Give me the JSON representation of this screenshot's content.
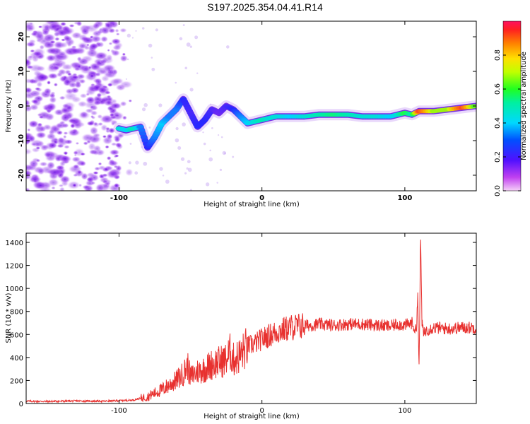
{
  "title": "S197.2025.354.04.41.R14",
  "colors": {
    "snr_line": "#e8312f",
    "ridge_low": "#7a10e8",
    "ridge_mid": "#00e0ff",
    "ridge_high": "#ff2040",
    "speckle": "#7a2ae0"
  },
  "chart_data": [
    {
      "id": "spectrogram",
      "type": "heatmap",
      "xlabel": "Height of straight line (km)",
      "ylabel": "Frequency (Hz)",
      "xlim": [
        -165,
        150
      ],
      "ylim": [
        -24.5,
        24.5
      ],
      "xticks": [
        -100,
        0,
        100
      ],
      "xtick_labels": [
        "-100",
        "0",
        "100"
      ],
      "yticks": [
        -20,
        -10,
        0,
        10,
        20
      ],
      "ytick_labels": [
        "-20",
        "-10",
        "0",
        "10",
        "20"
      ],
      "colorbar": {
        "label": "Normalized spectral amplitude",
        "range": [
          0,
          1
        ],
        "ticks": [
          0.0,
          0.2,
          0.4,
          0.6,
          0.8
        ],
        "tick_labels": [
          "0.0",
          "0.2",
          "0.4",
          "0.6",
          "0.8"
        ]
      },
      "ridge": {
        "x": [
          -100,
          -95,
          -90,
          -85,
          -80,
          -75,
          -70,
          -65,
          -60,
          -55,
          -50,
          -45,
          -40,
          -35,
          -30,
          -25,
          -20,
          -15,
          -10,
          -5,
          0,
          5,
          10,
          20,
          30,
          40,
          50,
          60,
          70,
          80,
          90,
          95,
          100,
          105,
          110,
          120,
          130,
          140,
          150
        ],
        "y": [
          -6.5,
          -7,
          -6.5,
          -6,
          -12,
          -9,
          -5,
          -3,
          -1,
          2,
          -2,
          -6,
          -4,
          -1,
          -2,
          0,
          -1,
          -3,
          -5,
          -4.5,
          -4,
          -3.5,
          -3,
          -3,
          -3,
          -2.5,
          -2.5,
          -2.5,
          -3,
          -3,
          -3,
          -2.5,
          -2,
          -2.5,
          -1.5,
          -1.5,
          -1,
          -0.5,
          0
        ],
        "amplitude": [
          0.45,
          0.4,
          0.5,
          0.35,
          0.3,
          0.35,
          0.4,
          0.35,
          0.35,
          0.3,
          0.25,
          0.3,
          0.3,
          0.25,
          0.2,
          0.25,
          0.3,
          0.35,
          0.4,
          0.45,
          0.5,
          0.45,
          0.45,
          0.4,
          0.45,
          0.5,
          0.55,
          0.5,
          0.45,
          0.45,
          0.4,
          0.45,
          0.6,
          0.5,
          0.95,
          0.7,
          0.7,
          0.95,
          0.6
        ]
      }
    },
    {
      "id": "snr",
      "type": "line",
      "xlabel": "Height of straight line (km)",
      "ylabel": "SNR (10 * v/v)",
      "xlim": [
        -165,
        150
      ],
      "ylim": [
        0,
        1480
      ],
      "xticks": [
        -100,
        0,
        100
      ],
      "xtick_labels": [
        "-100",
        "0",
        "100"
      ],
      "yticks": [
        0,
        200,
        400,
        600,
        800,
        1000,
        1200,
        1400
      ],
      "ytick_labels": [
        "0",
        "200",
        "400",
        "600",
        "800",
        "1000",
        "1200",
        "1400"
      ],
      "series": [
        {
          "name": "SNR",
          "x": [
            -165,
            -150,
            -130,
            -110,
            -100,
            -90,
            -80,
            -75,
            -70,
            -65,
            -60,
            -55,
            -52,
            -50,
            -45,
            -40,
            -35,
            -30,
            -25,
            -22,
            -20,
            -15,
            -10,
            -5,
            0,
            5,
            10,
            15,
            20,
            25,
            30,
            35,
            40,
            50,
            60,
            70,
            80,
            90,
            95,
            100,
            105,
            108,
            109,
            110,
            111,
            112,
            113,
            115,
            120,
            130,
            140,
            150
          ],
          "y": [
            20,
            18,
            22,
            20,
            25,
            30,
            60,
            90,
            120,
            160,
            200,
            260,
            330,
            230,
            280,
            300,
            340,
            360,
            380,
            450,
            380,
            420,
            500,
            520,
            560,
            590,
            620,
            640,
            660,
            670,
            680,
            680,
            690,
            680,
            690,
            690,
            680,
            670,
            690,
            680,
            700,
            620,
            960,
            270,
            1480,
            700,
            600,
            640,
            660,
            650,
            660,
            660
          ]
        }
      ]
    }
  ]
}
